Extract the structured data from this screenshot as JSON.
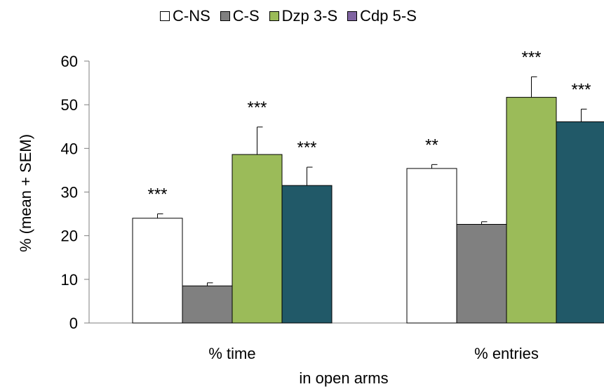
{
  "chart_data": {
    "type": "bar",
    "ylabel": "% (mean + SEM)",
    "xlabel": "in open arms",
    "ylim": [
      0,
      60
    ],
    "yticks": [
      0,
      10,
      20,
      30,
      40,
      50,
      60
    ],
    "grid": false,
    "legend_position": "top",
    "categories": [
      "% time",
      "% entries"
    ],
    "series": [
      {
        "name": "C-NS",
        "color": "#ffffff",
        "values": [
          24.0,
          35.4
        ],
        "errors": [
          1.0,
          0.9
        ],
        "significance": [
          "***",
          "**"
        ]
      },
      {
        "name": "C-S",
        "color": "#808080",
        "values": [
          8.5,
          22.6
        ],
        "errors": [
          0.7,
          0.6
        ],
        "significance": [
          "",
          ""
        ]
      },
      {
        "name": "Dzp 3-S",
        "color": "#9bbb59",
        "values": [
          38.6,
          51.7
        ],
        "errors": [
          6.3,
          4.7
        ],
        "significance": [
          "***",
          "***"
        ]
      },
      {
        "name": "Cdp 5-S",
        "color": "#215968",
        "legend_color": "#8064a2",
        "values": [
          31.5,
          46.1
        ],
        "errors": [
          4.2,
          2.9
        ],
        "significance": [
          "***",
          "***"
        ]
      }
    ]
  }
}
